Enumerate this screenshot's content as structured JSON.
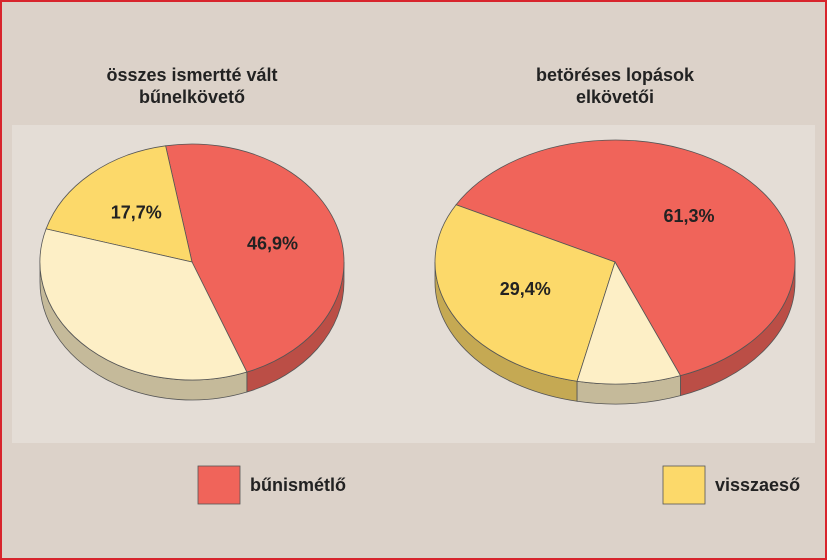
{
  "chart_data": [
    {
      "type": "pie3d",
      "title": [
        "összes ismertté vált",
        "bűnelkövető"
      ],
      "categories": [
        "bűnismétlő",
        "visszaeső",
        null
      ],
      "values": [
        46.9,
        17.7,
        35.4
      ],
      "value_labels": [
        "46,9%",
        "17,7%",
        null
      ],
      "colors": [
        "#f0645a",
        "#fcd96a",
        "#fdefc6"
      ]
    },
    {
      "type": "pie3d",
      "title": [
        "betöréses lopások",
        "elkövetői"
      ],
      "categories": [
        "bűnismétlő",
        "visszaeső",
        null
      ],
      "values": [
        61.3,
        29.4,
        9.3
      ],
      "value_labels": [
        "61,3%",
        "29,4%",
        null
      ],
      "colors": [
        "#f0645a",
        "#fcd96a",
        "#fdefc6"
      ]
    }
  ]
}
